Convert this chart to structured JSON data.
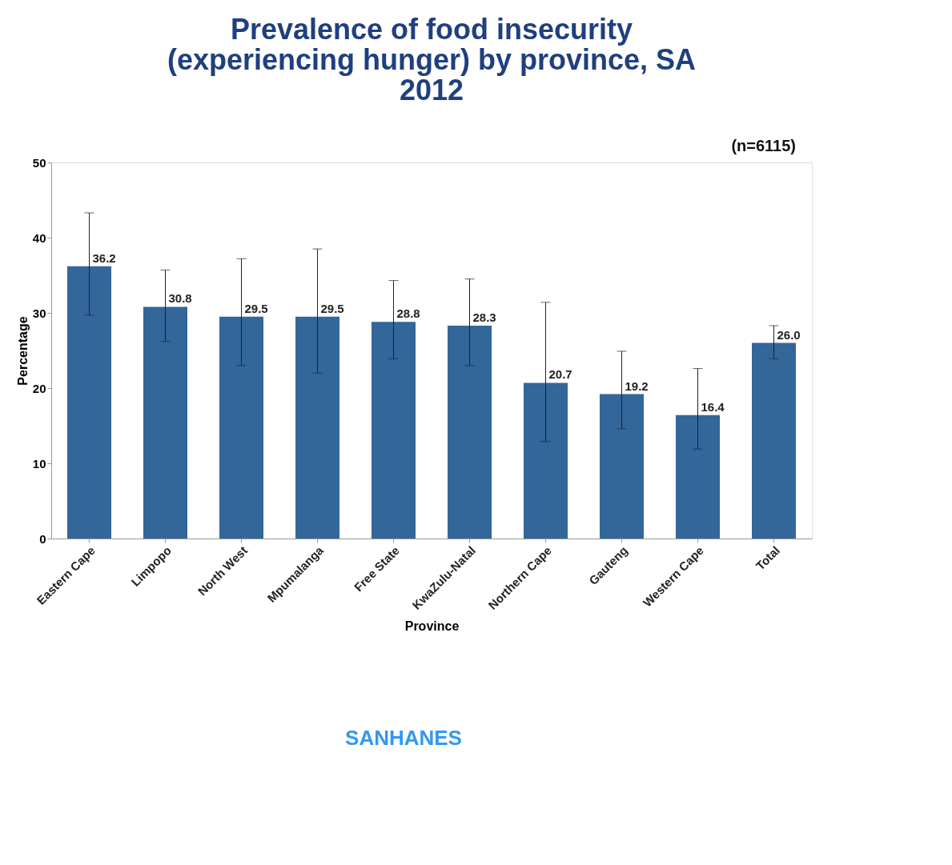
{
  "chart_data": {
    "type": "bar",
    "title": [
      "Prevalence of food insecurity",
      "(experiencing hunger) by province, SA",
      "2012"
    ],
    "xlabel": "Province",
    "ylabel": "Percentage",
    "categories": [
      "Eastern Cape",
      "Limpopo",
      "North West",
      "Mpumalanga",
      "Free State",
      "KwaZulu-Natal",
      "Northern Cape",
      "Gauteng",
      "Western Cape",
      "Total"
    ],
    "values": [
      36.2,
      30.8,
      29.5,
      29.5,
      28.8,
      28.3,
      20.7,
      19.2,
      16.4,
      26.0
    ],
    "value_labels": [
      "36.2",
      "30.8",
      "29.5",
      "29.5",
      "28.8",
      "28.3",
      "20.7",
      "19.2",
      "16.4",
      "26.0"
    ],
    "errors": [
      [
        29.7,
        43.3
      ],
      [
        26.2,
        35.7
      ],
      [
        23.0,
        37.2
      ],
      [
        22.0,
        38.5
      ],
      [
        23.9,
        34.3
      ],
      [
        23.0,
        34.5
      ],
      [
        12.9,
        31.4
      ],
      [
        14.6,
        24.9
      ],
      [
        11.9,
        22.6
      ],
      [
        23.9,
        28.3
      ]
    ],
    "color": "#336699",
    "ylim": [
      0,
      50
    ],
    "yticks": [
      0,
      10,
      20,
      30,
      40,
      50
    ],
    "grid": false,
    "annotations": [
      "(n=6115)",
      "SANHANES"
    ]
  }
}
